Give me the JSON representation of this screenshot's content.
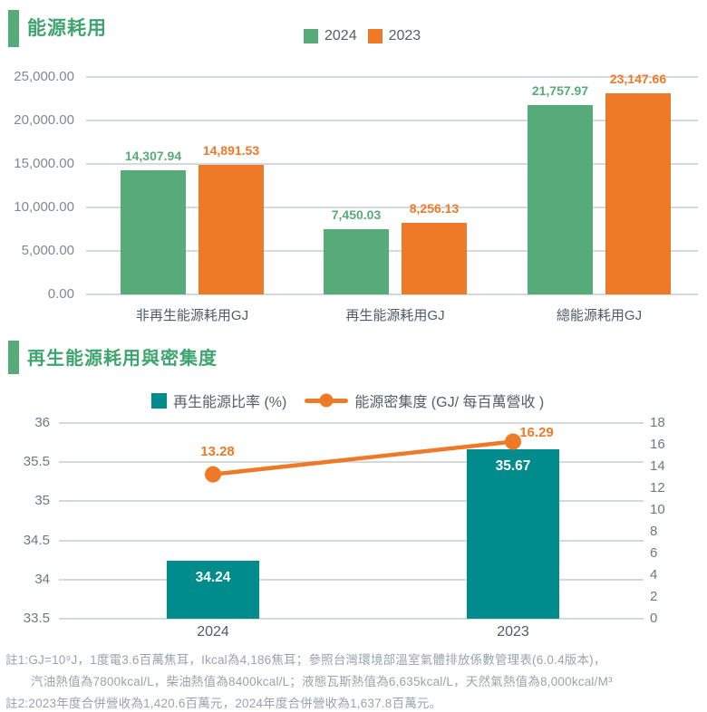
{
  "colors": {
    "green": "#57ab78",
    "title_green": "#3fa46f",
    "orange": "#ee7a28",
    "teal": "#008b8d",
    "grid": "#d6d9dc",
    "axis_text": "#7e8995",
    "category_text": "#4e5c69",
    "footnote_text": "#9aa3ad",
    "bar_label_white": "#ffffff"
  },
  "chart_data": [
    {
      "type": "bar",
      "title": "能源耗用",
      "categories": [
        "非再生能源耗用GJ",
        "再生能源耗用GJ",
        "總能源耗用GJ"
      ],
      "series": [
        {
          "name": "2024",
          "color": "#57ab78",
          "values": [
            14307.94,
            7450.03,
            21757.97
          ],
          "labels": [
            "14,307.94",
            "7,450.03",
            "21,757.97"
          ]
        },
        {
          "name": "2023",
          "color": "#ee7a28",
          "values": [
            14891.53,
            8256.13,
            23147.66
          ],
          "labels": [
            "14,891.53",
            "8,256.13",
            "23,147.66"
          ]
        }
      ],
      "xlabel": "",
      "ylabel": "",
      "ylim": [
        0,
        25000
      ],
      "yticks": [
        "25,000.00",
        "20,000.00",
        "15,000.00",
        "10,000.00",
        "5,000.00",
        "0.00"
      ],
      "grid": true,
      "legend_position": "top"
    },
    {
      "type": "combo",
      "title": "再生能源耗用與密集度",
      "categories": [
        "2024",
        "2023"
      ],
      "bar_series": {
        "name": "再生能源比率 (%)",
        "color": "#008b8d",
        "axis": "left",
        "values": [
          34.24,
          35.67
        ],
        "labels": [
          "34.24",
          "35.67"
        ]
      },
      "line_series": {
        "name": "能源密集度 (GJ/ 每百萬營收 )",
        "color": "#ee7a28",
        "axis": "right",
        "values": [
          13.28,
          16.29
        ],
        "labels": [
          "13.28",
          "16.29"
        ]
      },
      "left_ylim": [
        33.5,
        36
      ],
      "left_yticks": [
        "36",
        "35.5",
        "35",
        "34.5",
        "34",
        "33.5"
      ],
      "right_ylim": [
        0,
        18
      ],
      "right_yticks": [
        "18",
        "16",
        "14",
        "12",
        "10",
        "8",
        "6",
        "4",
        "2",
        "0"
      ],
      "grid": true,
      "legend_position": "top"
    }
  ],
  "footnotes": [
    "註1:GJ=10⁹J，1度電3.6百萬焦耳，Ikcal為4,186焦耳；參照台灣環境部溫室氣體排放係數管理表(6.0.4版本)，",
    "汽油熱值為7800kcal/L，柴油熱值為8400kcal/L；液態瓦斯熱值為6,635kcal/L，天然氣熱值為8,000kcal/M³",
    "註2:2023年度合併營收為1,420.6百萬元，2024年度合併營收為1,637.8百萬元。"
  ]
}
